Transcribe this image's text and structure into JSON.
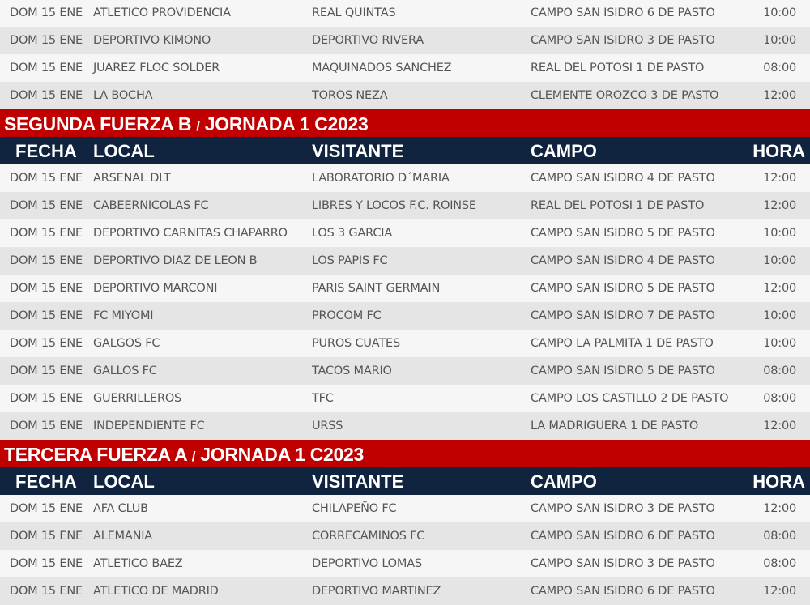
{
  "headers": {
    "fecha": "FECHA",
    "local": "LOCAL",
    "visitante": "VISITANTE",
    "campo": "CAMPO",
    "hora": "HORA"
  },
  "colors": {
    "title_bg": "#c00000",
    "header_bg": "#10233f"
  },
  "sections": [
    {
      "title": "",
      "rows": [
        [
          "DOM 15 ENE",
          "ATLETICO PROVIDENCIA",
          "REAL QUINTAS",
          "CAMPO SAN ISIDRO 6 DE PASTO",
          "10:00"
        ],
        [
          "DOM 15 ENE",
          "DEPORTIVO KIMONO",
          "DEPORTIVO RIVERA",
          "CAMPO SAN ISIDRO 3 DE PASTO",
          "10:00"
        ],
        [
          "DOM 15 ENE",
          "JUAREZ FLOC SOLDER",
          "MAQUINADOS SANCHEZ",
          "REAL DEL POTOSI 1 DE PASTO",
          "08:00"
        ],
        [
          "DOM 15 ENE",
          "LA BOCHA",
          "TOROS NEZA",
          "CLEMENTE OROZCO 3 DE PASTO",
          "12:00"
        ]
      ]
    },
    {
      "title_a": "SEGUNDA FUERZA B ",
      "title_sep": "/",
      "title_b": " JORNADA 1 C2023",
      "rows": [
        [
          "DOM 15 ENE",
          "ARSENAL DLT",
          "LABORATORIO D´MARIA",
          "CAMPO SAN ISIDRO 4 DE PASTO",
          "12:00"
        ],
        [
          "DOM 15 ENE",
          "CABEERNICOLAS FC",
          "LIBRES Y LOCOS F.C. ROINSE",
          "REAL DEL POTOSI 1 DE PASTO",
          "12:00"
        ],
        [
          "DOM 15 ENE",
          "DEPORTIVO CARNITAS CHAPARRO",
          "LOS 3 GARCIA",
          "CAMPO SAN ISIDRO 5 DE PASTO",
          "10:00"
        ],
        [
          "DOM 15 ENE",
          "DEPORTIVO DIAZ DE LEON B",
          "LOS PAPIS FC",
          "CAMPO SAN ISIDRO 4 DE PASTO",
          "10:00"
        ],
        [
          "DOM 15 ENE",
          "DEPORTIVO MARCONI",
          "PARIS SAINT GERMAIN",
          "CAMPO SAN ISIDRO 5 DE PASTO",
          "12:00"
        ],
        [
          "DOM 15 ENE",
          "FC MIYOMI",
          "PROCOM FC",
          "CAMPO SAN ISIDRO 7 DE PASTO",
          "10:00"
        ],
        [
          "DOM 15 ENE",
          "GALGOS FC",
          "PUROS CUATES",
          "CAMPO LA PALMITA 1 DE PASTO",
          "10:00"
        ],
        [
          "DOM 15 ENE",
          "GALLOS FC",
          "TACOS MARIO",
          "CAMPO SAN ISIDRO 5 DE PASTO",
          "08:00"
        ],
        [
          "DOM 15 ENE",
          "GUERRILLEROS",
          "TFC",
          "CAMPO LOS CASTILLO 2 DE PASTO",
          "08:00"
        ],
        [
          "DOM 15 ENE",
          "INDEPENDIENTE FC",
          "URSS",
          "LA MADRIGUERA 1 DE PASTO",
          "12:00"
        ]
      ]
    },
    {
      "title_a": "TERCERA FUERZA A ",
      "title_sep": "/",
      "title_b": " JORNADA 1 C2023",
      "rows": [
        [
          "DOM 15 ENE",
          "AFA CLUB",
          "CHILAPEÑO FC",
          "CAMPO SAN ISIDRO 3 DE PASTO",
          "12:00"
        ],
        [
          "DOM 15 ENE",
          "ALEMANIA",
          "CORRECAMINOS FC",
          "CAMPO SAN ISIDRO 6 DE PASTO",
          "08:00"
        ],
        [
          "DOM 15 ENE",
          "ATLETICO BAEZ",
          "DEPORTIVO LOMAS",
          "CAMPO SAN ISIDRO 3 DE PASTO",
          "08:00"
        ],
        [
          "DOM 15 ENE",
          "ATLETICO DE MADRID",
          "DEPORTIVO MARTINEZ",
          "CAMPO SAN ISIDRO 6 DE PASTO",
          "12:00"
        ]
      ]
    }
  ]
}
